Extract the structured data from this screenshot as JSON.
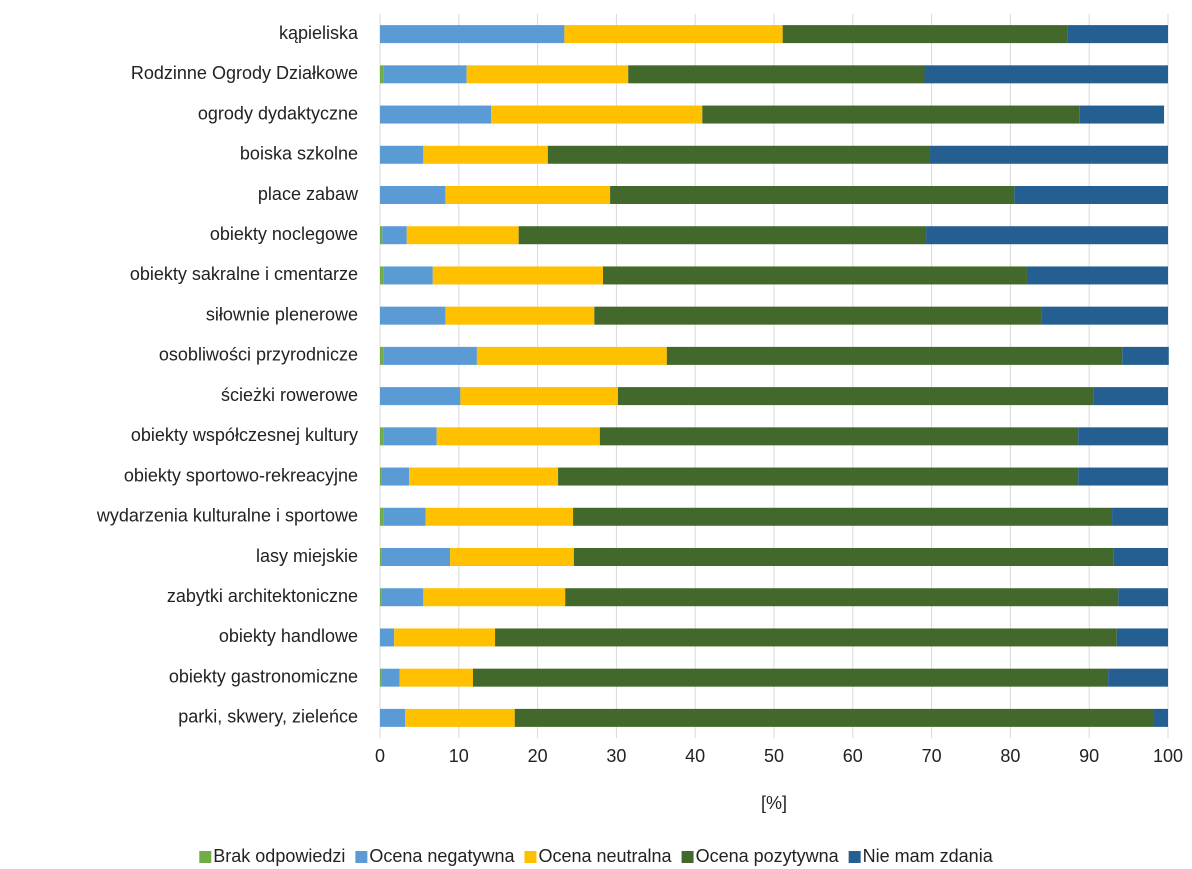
{
  "chart_data": {
    "type": "stacked_barh",
    "xlabel": "[%]",
    "categories": [
      "kąpieliska",
      "Rodzinne Ogrody Działkowe",
      "ogrody dydaktyczne",
      "boiska szkolne",
      "place zabaw",
      "obiekty noclegowe",
      "obiekty sakralne i cmentarze",
      "siłownie plenerowe",
      "osobliwości przyrodnicze",
      "ścieżki rowerowe",
      "obiekty współczesnej kultury",
      "obiekty sportowo-rekreacyjne",
      "wydarzenia kulturalne i sportowe",
      "lasy miejskie",
      "zabytki architektoniczne",
      "obiekty handlowe",
      "obiekty gastronomiczne",
      "parki, skwery, zieleńce"
    ],
    "series": [
      {
        "name": "Brak odpowiedzi",
        "color": "#70ad47",
        "values": [
          0,
          0.4,
          0,
          0,
          0,
          0.3,
          0.4,
          0,
          0.4,
          0,
          0.4,
          0.2,
          0.4,
          0.2,
          0.2,
          0,
          0.2,
          0
        ]
      },
      {
        "name": "Ocena negatywna",
        "color": "#5b9bd5",
        "values": [
          23.4,
          10.6,
          14.1,
          5.5,
          8.3,
          3.1,
          6.3,
          8.3,
          11.9,
          10.2,
          6.8,
          3.5,
          5.4,
          8.7,
          5.3,
          1.8,
          2.3,
          3.2
        ]
      },
      {
        "name": "Ocena neutralna",
        "color": "#ffc000",
        "values": [
          27.7,
          20.5,
          26.8,
          15.8,
          20.9,
          14.2,
          21.6,
          18.9,
          24.1,
          20.0,
          20.7,
          18.9,
          18.7,
          15.7,
          18.0,
          12.8,
          9.3,
          13.9
        ]
      },
      {
        "name": "Ocena pozytywna",
        "color": "#43682b",
        "values": [
          36.1,
          37.6,
          47.9,
          48.5,
          51.3,
          51.7,
          53.8,
          56.8,
          57.8,
          60.3,
          60.7,
          66.0,
          68.4,
          68.5,
          70.2,
          78.9,
          80.6,
          81.0
        ]
      },
      {
        "name": "Nie mam zdania",
        "color": "#255e91",
        "values": [
          12.8,
          30.9,
          10.7,
          30.2,
          19.5,
          30.7,
          17.9,
          16.0,
          5.9,
          9.5,
          11.4,
          11.4,
          7.1,
          6.9,
          6.3,
          6.5,
          7.6,
          1.9
        ]
      }
    ],
    "xlim": [
      0,
      100
    ],
    "xticks": [
      0,
      10,
      20,
      30,
      40,
      50,
      60,
      70,
      80,
      90,
      100
    ],
    "grid": true,
    "legend": "bottom"
  }
}
